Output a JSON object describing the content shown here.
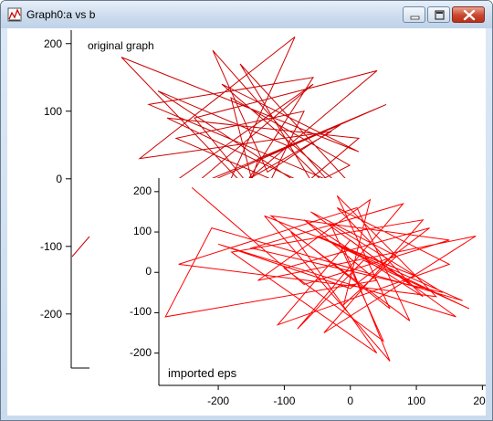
{
  "window": {
    "title": "Graph0:a vs b",
    "controls": {
      "minimize": "minimize",
      "maximize": "maximize",
      "close": "close"
    }
  },
  "colors": {
    "trace": "#cc0000",
    "imported_trace": "#ff0000"
  },
  "chart_data": [
    {
      "type": "line",
      "annotation": "original graph",
      "y_ticks": [
        "200",
        "100",
        "0",
        "-100",
        "-200"
      ],
      "ylim": [
        -280,
        220
      ],
      "x": [
        -20,
        60,
        -120,
        90,
        -40,
        110,
        -150,
        20,
        -70,
        130,
        -10,
        80,
        -130,
        40,
        -60,
        100,
        -30,
        0,
        50,
        -90,
        150,
        -20,
        70,
        -110,
        30,
        120,
        -50,
        10,
        90,
        -140,
        60,
        -80,
        140,
        0,
        -30,
        110,
        -100,
        40
      ],
      "y": [
        -20,
        150,
        110,
        -10,
        140,
        40,
        180,
        -60,
        90,
        160,
        0,
        70,
        30,
        210,
        -90,
        20,
        120,
        -40,
        100,
        60,
        -80,
        170,
        -30,
        130,
        50,
        -70,
        190,
        10,
        80,
        -50,
        140,
        -20,
        110,
        30,
        -100,
        60,
        90,
        0
      ]
    },
    {
      "type": "line",
      "annotation": "imported eps",
      "x_ticks": [
        "-200",
        "-100",
        "0",
        "100",
        "200"
      ],
      "y_ticks": [
        "200",
        "100",
        "0",
        "-100",
        "-200"
      ],
      "xlim": [
        -290,
        205
      ],
      "ylim": [
        -280,
        220
      ],
      "x": [
        -240,
        -70,
        150,
        -120,
        60,
        -20,
        130,
        -260,
        10,
        90,
        -90,
        40,
        -180,
        110,
        -40,
        190,
        -140,
        30,
        -10,
        70,
        -60,
        160,
        -200,
        0,
        120,
        -100,
        50,
        -30,
        140,
        -150,
        80,
        -80,
        20,
        180,
        -50,
        100,
        -130,
        60,
        -10,
        170,
        -210,
        -280,
        40,
        -70,
        110,
        -20,
        150,
        -110,
        0,
        90
      ],
      "y": [
        210,
        -30,
        80,
        140,
        -90,
        190,
        -60,
        20,
        160,
        -120,
        100,
        -200,
        50,
        130,
        -150,
        90,
        -20,
        180,
        -80,
        40,
        150,
        -110,
        70,
        -40,
        110,
        10,
        -170,
        120,
        -50,
        60,
        170,
        -140,
        30,
        -90,
        90,
        -10,
        140,
        -220,
        60,
        -70,
        110,
        -110,
        -20,
        130,
        -60,
        160,
        20,
        -130,
        80,
        -30
      ]
    }
  ]
}
